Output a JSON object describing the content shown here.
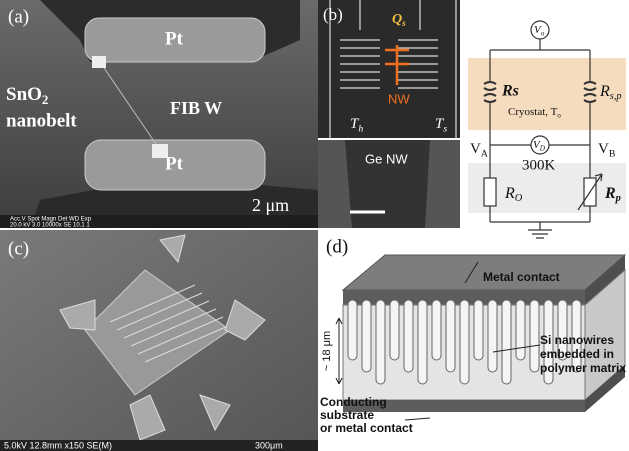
{
  "panels": {
    "a": {
      "label": "(a)",
      "pt_top": "Pt",
      "pt_bottom": "Pt",
      "belt": {
        "base": "SnO",
        "sub": "2",
        "line2": "nanobelt"
      },
      "fib": "FIB W",
      "scale": "2 μm",
      "sem_info": "Acc.V  Spot Magn   Det  WD  Exp",
      "sem_values": "20.0 kV 3.0  10000x  SE  10.1  1"
    },
    "b": {
      "label": "(b)",
      "q": {
        "base": "Q",
        "sub": "s"
      },
      "nw": "NW",
      "th": {
        "base": "T",
        "sub": "h"
      },
      "ts": {
        "base": "T",
        "sub": "s"
      },
      "ge": "Ge NW"
    },
    "circuit": {
      "v0": {
        "base": "V",
        "sub": "o"
      },
      "rs": "Rs",
      "rsp": {
        "base": "R",
        "sub": "s,p"
      },
      "cryostat": {
        "base": "Cryostat, T",
        "sub": "o"
      },
      "va": {
        "base": "V",
        "sub": "A"
      },
      "vb": {
        "base": "V",
        "sub": "B"
      },
      "vd": {
        "base": "V",
        "sub": "D"
      },
      "room": "300K",
      "ro": {
        "base": "R",
        "sub": "O"
      },
      "rp": {
        "base": "R",
        "sub": "p"
      }
    },
    "c": {
      "label": "(c)",
      "sem_info": "5.0kV 12.8mm x150 SE(M)",
      "scale": "300μm"
    },
    "d": {
      "label": "(d)",
      "metal": "Metal contact",
      "height": "~ 18 μm",
      "wires": [
        "Si nanowires",
        "embedded in",
        "polymer matrix"
      ],
      "substrate": [
        "Conducting",
        "substrate",
        "or metal contact"
      ]
    }
  }
}
